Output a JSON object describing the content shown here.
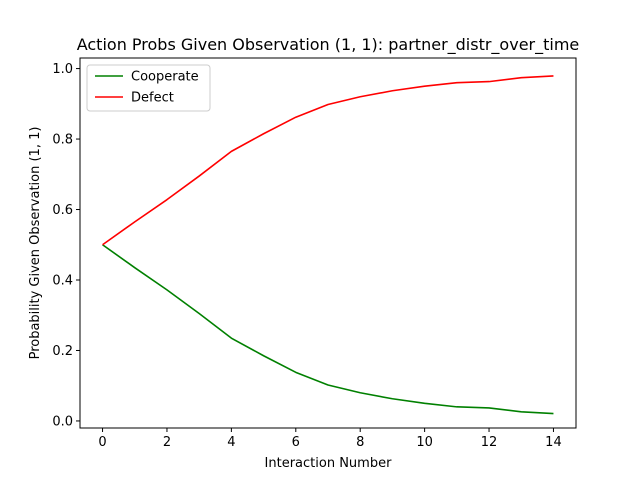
{
  "chart_data": {
    "type": "line",
    "title": "Action Probs Given Observation (1, 1): partner_distr_over_time",
    "xlabel": "Interaction Number",
    "ylabel": "Probability Given Observation (1, 1)",
    "xlim": [
      -0.7,
      14.7
    ],
    "ylim": [
      -0.02,
      1.03
    ],
    "xticks": [
      0,
      2,
      4,
      6,
      8,
      10,
      12,
      14
    ],
    "yticks": [
      0.0,
      0.2,
      0.4,
      0.6,
      0.8,
      1.0
    ],
    "xtick_labels": [
      "0",
      "2",
      "4",
      "6",
      "8",
      "10",
      "12",
      "14"
    ],
    "ytick_labels": [
      "0.0",
      "0.2",
      "0.4",
      "0.6",
      "0.8",
      "1.0"
    ],
    "grid": false,
    "legend_position": "top-left",
    "x": [
      0,
      1,
      2,
      3,
      4,
      5,
      6,
      7,
      8,
      9,
      10,
      11,
      12,
      13,
      14
    ],
    "series": [
      {
        "name": "Cooperate",
        "color": "#008000",
        "values": [
          0.5,
          0.435,
          0.372,
          0.305,
          0.235,
          0.185,
          0.138,
          0.102,
          0.08,
          0.063,
          0.05,
          0.04,
          0.037,
          0.026,
          0.021
        ]
      },
      {
        "name": "Defect",
        "color": "#ff0000",
        "values": [
          0.5,
          0.565,
          0.628,
          0.695,
          0.765,
          0.815,
          0.862,
          0.898,
          0.92,
          0.937,
          0.95,
          0.96,
          0.963,
          0.974,
          0.979
        ]
      }
    ]
  }
}
